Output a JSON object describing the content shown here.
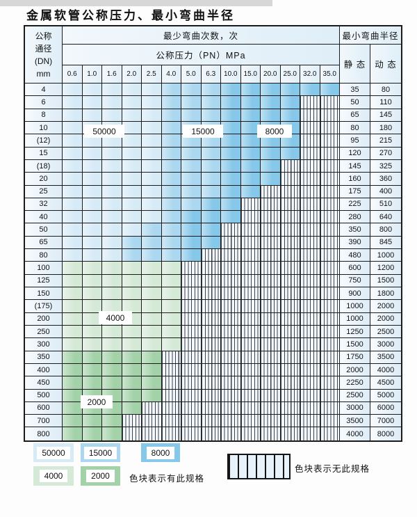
{
  "title": "金属软管公称压力、最小弯曲半径",
  "colors": {
    "b1": "#d7ebf7",
    "b2": "#abd8f0",
    "b3": "#86c8e9",
    "g1": "#d5e9d7",
    "g2": "#a3d2a9"
  },
  "table": {
    "corner_lines": [
      "公称",
      "通径",
      "(DN)",
      "mm"
    ],
    "bend_header": "最少弯曲次数，次",
    "radius_header": "最小弯曲半径",
    "pressure_header": "公称压力（PN）MPa",
    "pressure_cols": [
      "0.6",
      "1.0",
      "1.6",
      "2.0",
      "2.5",
      "4.0",
      "5.0",
      "6.3",
      "10.0",
      "15.0",
      "20.0",
      "25.0",
      "32.0",
      "35.0"
    ],
    "static_header": "静 态",
    "dynamic_header": "动 态",
    "rows": [
      {
        "dn": "4",
        "spec": [
          [
            "b1",
            5
          ],
          [
            "b2",
            3
          ],
          [
            "b3",
            6
          ]
        ],
        "static": "35",
        "dynamic": "80"
      },
      {
        "dn": "6",
        "spec": [
          [
            "b1",
            5
          ],
          [
            "b2",
            3
          ],
          [
            "b3",
            4
          ]
        ],
        "static": "50",
        "dynamic": "110"
      },
      {
        "dn": "8",
        "spec": [
          [
            "b1",
            5
          ],
          [
            "b2",
            3
          ],
          [
            "b3",
            4
          ]
        ],
        "static": "65",
        "dynamic": "145"
      },
      {
        "dn": "10",
        "spec": [
          [
            "b1",
            5
          ],
          [
            "b2",
            3
          ],
          [
            "b3",
            4
          ]
        ],
        "static": "80",
        "dynamic": "180"
      },
      {
        "dn": "(12)",
        "spec": [
          [
            "b1",
            5
          ],
          [
            "b2",
            3
          ],
          [
            "b3",
            4
          ]
        ],
        "static": "95",
        "dynamic": "215"
      },
      {
        "dn": "15",
        "spec": [
          [
            "b1",
            5
          ],
          [
            "b2",
            3
          ],
          [
            "b3",
            4
          ]
        ],
        "static": "120",
        "dynamic": "270"
      },
      {
        "dn": "(18)",
        "spec": [
          [
            "b1",
            5
          ],
          [
            "b2",
            3
          ],
          [
            "b3",
            3
          ]
        ],
        "static": "145",
        "dynamic": "325"
      },
      {
        "dn": "20",
        "spec": [
          [
            "b1",
            5
          ],
          [
            "b2",
            3
          ],
          [
            "b3",
            3
          ]
        ],
        "static": "160",
        "dynamic": "360"
      },
      {
        "dn": "25",
        "spec": [
          [
            "b1",
            5
          ],
          [
            "b2",
            3
          ],
          [
            "b3",
            2
          ]
        ],
        "static": "175",
        "dynamic": "400"
      },
      {
        "dn": "32",
        "spec": [
          [
            "b1",
            5
          ],
          [
            "b2",
            2
          ],
          [
            "b3",
            2
          ]
        ],
        "static": "225",
        "dynamic": "510"
      },
      {
        "dn": "40",
        "spec": [
          [
            "b1",
            5
          ],
          [
            "b2",
            1
          ],
          [
            "b3",
            3
          ]
        ],
        "static": "280",
        "dynamic": "640"
      },
      {
        "dn": "50",
        "spec": [
          [
            "b1",
            4
          ],
          [
            "b2",
            2
          ],
          [
            "b3",
            2
          ]
        ],
        "static": "350",
        "dynamic": "800"
      },
      {
        "dn": "65",
        "spec": [
          [
            "b1",
            3
          ],
          [
            "b2",
            3
          ],
          [
            "b3",
            2
          ]
        ],
        "static": "390",
        "dynamic": "845"
      },
      {
        "dn": "80",
        "spec": [
          [
            "b1",
            3
          ],
          [
            "b2",
            3
          ],
          [
            "b3",
            1
          ]
        ],
        "static": "480",
        "dynamic": "1000"
      },
      {
        "dn": "100",
        "spec": [
          [
            "g1",
            6
          ]
        ],
        "static": "600",
        "dynamic": "1200"
      },
      {
        "dn": "125",
        "spec": [
          [
            "g1",
            6
          ]
        ],
        "static": "750",
        "dynamic": "1500"
      },
      {
        "dn": "150",
        "spec": [
          [
            "g1",
            6
          ]
        ],
        "static": "900",
        "dynamic": "1800"
      },
      {
        "dn": "(175)",
        "spec": [
          [
            "g1",
            6
          ]
        ],
        "static": "1000",
        "dynamic": "2000"
      },
      {
        "dn": "200",
        "spec": [
          [
            "g1",
            6
          ]
        ],
        "static": "1000",
        "dynamic": "2000"
      },
      {
        "dn": "250",
        "spec": [
          [
            "g1",
            6
          ]
        ],
        "static": "1250",
        "dynamic": "2500"
      },
      {
        "dn": "300",
        "spec": [
          [
            "g1",
            6
          ]
        ],
        "static": "1500",
        "dynamic": "3000"
      },
      {
        "dn": "350",
        "spec": [
          [
            "g2",
            5
          ]
        ],
        "static": "1750",
        "dynamic": "3500"
      },
      {
        "dn": "400",
        "spec": [
          [
            "g2",
            5
          ]
        ],
        "static": "2000",
        "dynamic": "4000"
      },
      {
        "dn": "450",
        "spec": [
          [
            "g2",
            5
          ]
        ],
        "static": "2250",
        "dynamic": "4500"
      },
      {
        "dn": "500",
        "spec": [
          [
            "g2",
            5
          ]
        ],
        "static": "2500",
        "dynamic": "5000"
      },
      {
        "dn": "600",
        "spec": [
          [
            "g2",
            4
          ]
        ],
        "static": "3000",
        "dynamic": "6000"
      },
      {
        "dn": "700",
        "spec": [
          [
            "g2",
            3
          ]
        ],
        "static": "3500",
        "dynamic": "7000"
      },
      {
        "dn": "800",
        "spec": [
          [
            "g2",
            3
          ]
        ],
        "static": "4000",
        "dynamic": "8000"
      }
    ]
  },
  "region_labels": [
    {
      "id": "label-50000",
      "text": "50000"
    },
    {
      "id": "label-15000",
      "text": "15000"
    },
    {
      "id": "label-8000",
      "text": "8000"
    },
    {
      "id": "label-4000",
      "text": "4000"
    },
    {
      "id": "label-2000",
      "text": "2000"
    }
  ],
  "legend": {
    "swatches": [
      {
        "label": "50000",
        "color_key": "b1"
      },
      {
        "label": "15000",
        "color_key": "b2"
      },
      {
        "label": "8000",
        "color_key": "b3"
      },
      {
        "label": "4000",
        "color_key": "g1"
      },
      {
        "label": "2000",
        "color_key": "g2"
      }
    ],
    "has_spec_text": "色块表示有此规格",
    "no_spec_text": "色块表示无此规格"
  }
}
